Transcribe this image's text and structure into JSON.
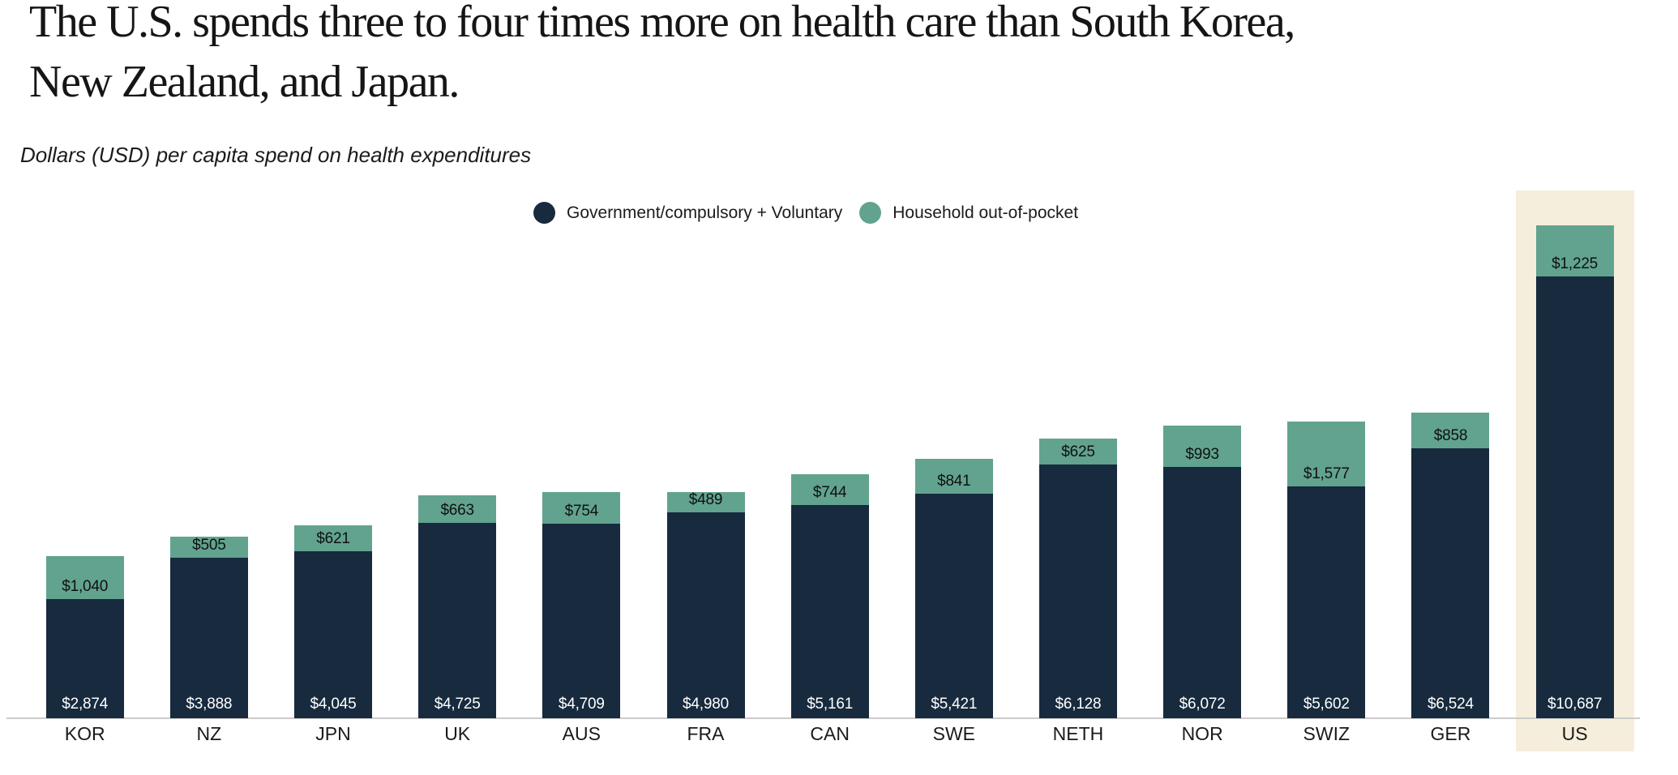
{
  "header": {
    "title_line1": "The U.S. spends three to four times more on health care than South Korea,",
    "title_line2": "New Zealand, and Japan.",
    "subtitle": "Dollars (USD) per capita spend on health expenditures"
  },
  "legend": {
    "items": [
      {
        "label": "Government/compulsory + Voluntary",
        "color": "#172A3E"
      },
      {
        "label": "Household out-of-pocket",
        "color": "#61A38E"
      }
    ]
  },
  "colors": {
    "government": "#172A3E",
    "household": "#61A38E",
    "us_highlight": "#F6EEDC",
    "axis_line": "#CCCCCC",
    "text": "#1A1A1A"
  },
  "chart_data": {
    "type": "bar",
    "stacked": true,
    "title": "The U.S. spends three to four times more on health care than South Korea, New Zealand, and Japan.",
    "subtitle": "Dollars (USD) per capita spend on health expenditures",
    "xlabel": "",
    "ylabel": "Dollars (USD) per capita spend on health expenditures",
    "y_axis_visible": false,
    "grid": false,
    "legend_position": "top-center",
    "value_labels": "inside",
    "ylim": [
      0,
      11912
    ],
    "categories": [
      "KOR",
      "NZ",
      "JPN",
      "UK",
      "AUS",
      "FRA",
      "CAN",
      "SWE",
      "NETH",
      "NOR",
      "SWIZ",
      "GER",
      "US"
    ],
    "series": [
      {
        "name": "Government/compulsory + Voluntary",
        "color": "#172A3E",
        "values": [
          2874,
          3888,
          4045,
          4725,
          4709,
          4980,
          5161,
          5421,
          6128,
          6072,
          5602,
          6524,
          10687
        ],
        "labels": [
          "$2,874",
          "$3,888",
          "$4,045",
          "$4,725",
          "$4,709",
          "$4,980",
          "$5,161",
          "$5,421",
          "$6,128",
          "$6,072",
          "$5,602",
          "$6,524",
          "$10,687"
        ]
      },
      {
        "name": "Household out-of-pocket",
        "color": "#61A38E",
        "values": [
          1040,
          505,
          621,
          663,
          754,
          489,
          744,
          841,
          625,
          993,
          1577,
          858,
          1225
        ],
        "labels": [
          "$1,040",
          "$505",
          "$621",
          "$663",
          "$754",
          "$489",
          "$744",
          "$841",
          "$625",
          "$993",
          "$1,577",
          "$858",
          "$1,225"
        ]
      }
    ],
    "highlighted_category": "US",
    "highlight_color": "#F6EEDC"
  }
}
